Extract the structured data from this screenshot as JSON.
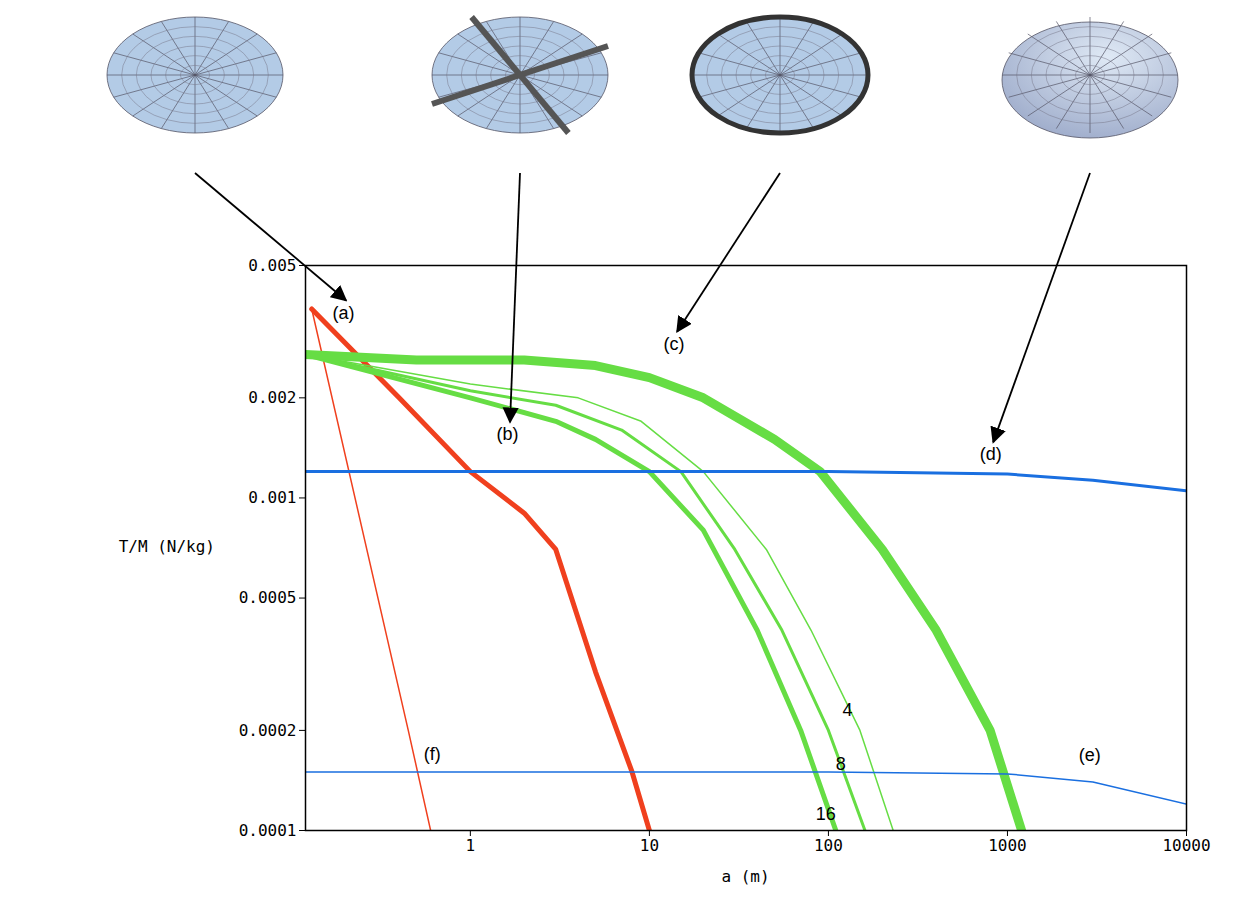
{
  "chart_data": {
    "type": "line",
    "x_label": "a (m)",
    "y_label": "T/M (N/kg)",
    "log": true,
    "grid": false,
    "xlim": [
      0.12,
      10000
    ],
    "xticks": [
      1,
      10,
      100,
      1000,
      10000
    ],
    "ylim": [
      0.0001,
      0.005
    ],
    "yticks": [
      0.0001,
      0.0002,
      0.0005,
      0.001,
      0.002,
      0.005
    ],
    "series": [
      {
        "color": "#f0401e",
        "line_style": "thin",
        "x": [
          0.13,
          0.45,
          0.6
        ],
        "values": [
          0.0037,
          0.0002,
          0.0001
        ]
      },
      {
        "color": "#f0401e",
        "line_style": "thick",
        "x": [
          0.13,
          0.4,
          1,
          2,
          3,
          5,
          8,
          10
        ],
        "values": [
          0.0037,
          0.002,
          0.0012,
          0.0009,
          0.0007,
          0.0003,
          0.00015,
          0.0001
        ]
      },
      {
        "color": "#66dd44",
        "line_style": "thin",
        "x": [
          0.12,
          1,
          4,
          9,
          20,
          45,
          80,
          150,
          230
        ],
        "values": [
          0.0027,
          0.0022,
          0.002,
          0.0017,
          0.0012,
          0.0007,
          0.0004,
          0.0002,
          0.0001
        ]
      },
      {
        "color": "#66dd44",
        "line_style": "medium",
        "x": [
          0.12,
          1,
          3,
          7,
          15,
          30,
          55,
          100,
          160
        ],
        "values": [
          0.0027,
          0.0021,
          0.0019,
          0.0016,
          0.0012,
          0.0007,
          0.0004,
          0.0002,
          0.0001
        ]
      },
      {
        "color": "#66dd44",
        "line_style": "thick",
        "x": [
          0.12,
          1,
          3,
          5,
          10,
          20,
          40,
          70,
          110
        ],
        "values": [
          0.0027,
          0.002,
          0.0017,
          0.0015,
          0.0012,
          0.0008,
          0.0004,
          0.0002,
          0.0001
        ]
      },
      {
        "color": "#66dd44",
        "line_style": "extra-thick",
        "x": [
          0.12,
          0.5,
          2,
          5,
          10,
          20,
          50,
          90,
          200,
          400,
          800,
          1200
        ],
        "values": [
          0.0027,
          0.0026,
          0.0026,
          0.0025,
          0.0023,
          0.002,
          0.0015,
          0.0012,
          0.0007,
          0.0004,
          0.0002,
          0.0001
        ]
      },
      {
        "color": "#1a6fe0",
        "line_style": "medium",
        "x": [
          0.12,
          100,
          1000,
          3000,
          10000
        ],
        "values": [
          0.0012,
          0.0012,
          0.00118,
          0.00113,
          0.00105
        ]
      },
      {
        "color": "#1a6fe0",
        "line_style": "thin",
        "x": [
          0.12,
          100,
          1000,
          3000,
          10000
        ],
        "values": [
          0.00015,
          0.00015,
          0.000148,
          0.00014,
          0.00012
        ]
      }
    ],
    "annotations": [
      {
        "text": "(a)",
        "x": 0.17,
        "y": 0.0036
      },
      {
        "text": "(b)",
        "x": 1.4,
        "y": 0.00155
      },
      {
        "text": "(c)",
        "x": 12,
        "y": 0.0029
      },
      {
        "text": "(d)",
        "x": 700,
        "y": 0.00135
      },
      {
        "text": "(e)",
        "x": 2500,
        "y": 0.000168
      },
      {
        "text": "(f)",
        "x": 0.55,
        "y": 0.00017
      },
      {
        "text": "4",
        "x": 120,
        "y": 0.00023
      },
      {
        "text": "8",
        "x": 110,
        "y": 0.000158
      },
      {
        "text": "16",
        "x": 85,
        "y": 0.000112
      }
    ]
  }
}
